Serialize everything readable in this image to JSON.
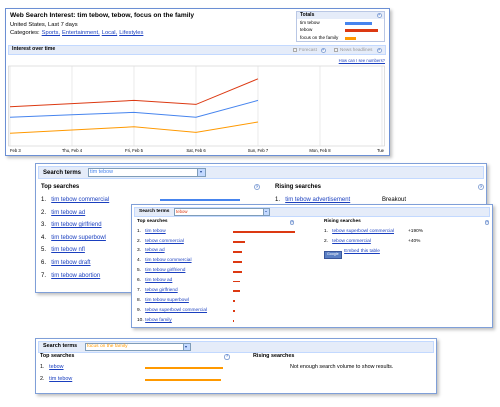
{
  "help_icon": "?",
  "header": {
    "title": "Web Search Interest: tim tebow, tebow, focus on the family",
    "region": "United States, Last 7 days",
    "categories_label": "Categories:",
    "categories": [
      "Sports,",
      "Entertainment,",
      "Local,",
      "Lifestyles"
    ]
  },
  "totals": {
    "title": "Totals",
    "items": [
      {
        "name": "tim tebow",
        "color": "#4684ee",
        "value": 82
      },
      {
        "name": "tebow",
        "color": "#dc3912",
        "value": 100
      },
      {
        "name": "focus on the family",
        "color": "#ff9900",
        "value": 33
      }
    ]
  },
  "interest": {
    "title": "Interest over time",
    "forecast": "Forecast",
    "news": "News headlines",
    "numbers_link": "How can I see numbers?",
    "chart_data": {
      "type": "line",
      "categories": [
        "Feb 3",
        "Thu, Feb 4",
        "Fri, Feb 5",
        "Sat, Feb 6",
        "Sun, Feb 7",
        "Mon, Feb 8",
        "Tue"
      ],
      "ylim": [
        0,
        100
      ],
      "grid": true,
      "series": [
        {
          "name": "tebow",
          "color": "#dc3912",
          "values": [
            49,
            53,
            57,
            52,
            84,
            null,
            null
          ]
        },
        {
          "name": "tim tebow",
          "color": "#4684ee",
          "values": [
            36,
            39,
            42,
            36,
            57,
            null,
            null
          ]
        },
        {
          "name": "focus on the family",
          "color": "#ff9900",
          "values": [
            16,
            20,
            24,
            17,
            30,
            null,
            null
          ]
        }
      ]
    }
  },
  "panels": [
    {
      "label": "Search terms",
      "term": "tim tebow",
      "color": "#4684ee",
      "top_title": "Top searches",
      "rising_title": "Rising searches",
      "top": [
        {
          "rank": "1.",
          "term": "tim tebow commercial",
          "value": 100
        },
        {
          "rank": "2.",
          "term": "tim tebow ad"
        },
        {
          "rank": "3.",
          "term": "tim tebow girlfriend"
        },
        {
          "rank": "4.",
          "term": "tim tebow superbowl"
        },
        {
          "rank": "5.",
          "term": "tim tebow nfl"
        },
        {
          "rank": "6.",
          "term": "tim tebow draft"
        },
        {
          "rank": "7.",
          "term": "tim tebow abortion"
        }
      ],
      "rising": [
        {
          "rank": "1.",
          "term": "tim tebow advertisement",
          "change": "Breakout"
        }
      ]
    },
    {
      "label": "Search terms",
      "term": "tebow",
      "color": "#dc3912",
      "top_title": "Top searches",
      "rising_title": "Rising searches",
      "top": [
        {
          "rank": "1.",
          "term": "tim tebow",
          "value": 100
        },
        {
          "rank": "2.",
          "term": "tebow commercial",
          "value": 20
        },
        {
          "rank": "3.",
          "term": "tebow ad",
          "value": 15
        },
        {
          "rank": "4.",
          "term": "tim tebow commercial",
          "value": 14
        },
        {
          "rank": "5.",
          "term": "tim tebow girlfriend",
          "value": 14
        },
        {
          "rank": "6.",
          "term": "tim tebow ad",
          "value": 12
        },
        {
          "rank": "7.",
          "term": "tebow girlfriend",
          "value": 12
        },
        {
          "rank": "8.",
          "term": "tim tebow superbowl",
          "value": 3
        },
        {
          "rank": "9.",
          "term": "tebow superbowl commercial",
          "value": 3
        },
        {
          "rank": "10.",
          "term": "tebow family",
          "value": 2
        }
      ],
      "rising": [
        {
          "rank": "1.",
          "term": "tebow superbowl commercial",
          "change": "+190%"
        },
        {
          "rank": "2.",
          "term": "tebow commercial",
          "change": "+40%"
        }
      ],
      "badge": "Google",
      "embed": "Embed this table"
    },
    {
      "label": "Search terms",
      "term": "focus on the family",
      "color": "#ff9900",
      "top_title": "Top searches",
      "rising_title": "Rising searches",
      "top": [
        {
          "rank": "1.",
          "term": "tebow",
          "value": 100
        },
        {
          "rank": "2.",
          "term": "tim tebow",
          "value": 97
        }
      ],
      "rising": [],
      "note": "Not enough search volume to show results."
    }
  ]
}
